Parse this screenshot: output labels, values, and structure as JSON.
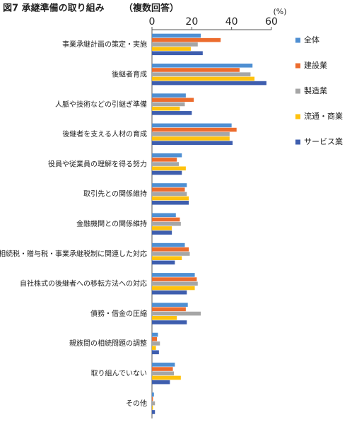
{
  "chart_data": {
    "type": "hbar",
    "title": "図7 承継準備の取り組み",
    "subtitle": "（複数回答）",
    "unit_label": "(%)",
    "categories": [
      "事業承継計画の策定・実施",
      "後継者育成",
      "人脈や技術などの引継ぎ準備",
      "後継者を支える人材の育成",
      "役員や従業員の理解を得る努力",
      "取引先との関係維持",
      "金融機関との関係維持",
      "相続税・贈与税・事業承継税制に関連した対応",
      "自社株式の後継者への移転方法への対応",
      "債務・借金の圧縮",
      "親族間の相続問題の調整",
      "取り組んでいない",
      "その他"
    ],
    "series": [
      {
        "name": "全体",
        "color": "#4f8fd2",
        "values": [
          24.5,
          50.5,
          17,
          40,
          15,
          17.5,
          12,
          16.5,
          21.5,
          18,
          3,
          11.5,
          1
        ]
      },
      {
        "name": "建設業",
        "color": "#ec6c2e",
        "values": [
          34.5,
          44,
          21,
          42.5,
          12.5,
          16.5,
          14,
          18.5,
          22.5,
          17,
          2.5,
          10.5,
          0.5
        ]
      },
      {
        "name": "製造業",
        "color": "#a6a6a6",
        "values": [
          23,
          49.5,
          16.5,
          39,
          13.5,
          17.5,
          14.5,
          19,
          23,
          24.5,
          4,
          11,
          1.5
        ]
      },
      {
        "name": "流通・商業",
        "color": "#ffc20e",
        "values": [
          19.5,
          51.5,
          14,
          39,
          17,
          18.5,
          10,
          15,
          21.5,
          12.5,
          2,
          14.5,
          0.5
        ]
      },
      {
        "name": "サービス業",
        "color": "#3e5eae",
        "values": [
          25.5,
          57.5,
          20,
          40.5,
          15,
          18.5,
          10,
          11.5,
          17.5,
          17.5,
          3.5,
          9,
          1.5
        ]
      }
    ],
    "xlim": [
      0,
      60
    ],
    "xticks": [
      0,
      20,
      40,
      60
    ]
  }
}
